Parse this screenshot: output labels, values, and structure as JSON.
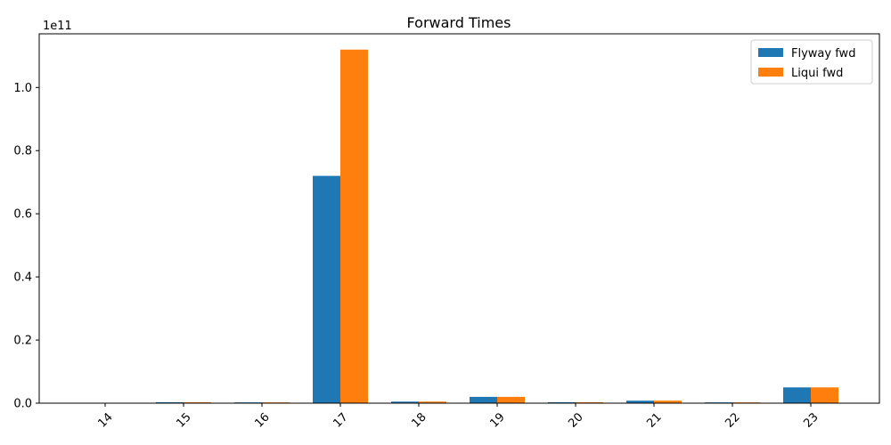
{
  "chart_data": {
    "type": "bar",
    "title": "Forward Times",
    "xlabel": "",
    "ylabel": "",
    "categories": [
      "14",
      "15",
      "16",
      "17",
      "18",
      "19",
      "20",
      "21",
      "22",
      "23"
    ],
    "series": [
      {
        "name": "Flyway fwd",
        "color": "#1f77b4",
        "values": [
          50000000,
          300000000,
          250000000,
          72000000000,
          500000000,
          2000000000,
          300000000,
          800000000,
          250000000,
          5000000000
        ]
      },
      {
        "name": "Liqui fwd",
        "color": "#ff7f0e",
        "values": [
          50000000,
          300000000,
          250000000,
          112000000000,
          500000000,
          2000000000,
          300000000,
          800000000,
          250000000,
          5000000000
        ]
      }
    ],
    "ylim": [
      0,
      117000000000
    ],
    "y_ticks": [
      "0.0",
      "0.2",
      "0.4",
      "0.6",
      "0.8",
      "1.0"
    ],
    "y_tick_values": [
      0,
      20000000000,
      40000000000,
      60000000000,
      80000000000,
      100000000000
    ],
    "y_offset_label": "1e11",
    "legend_position": "top-right",
    "grid": false
  }
}
